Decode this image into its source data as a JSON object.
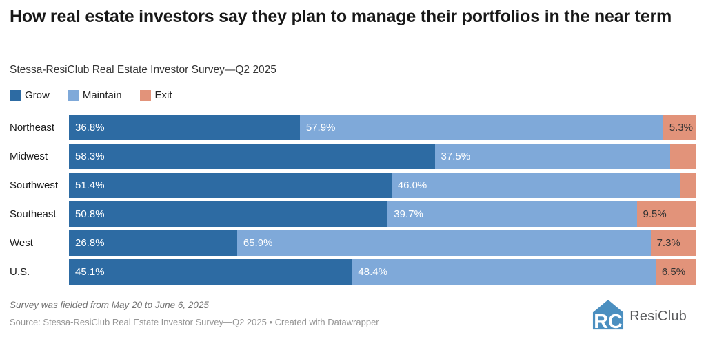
{
  "header": {
    "title": "How real estate investors say they plan to manage their portfolios in the near term",
    "subtitle": "Stessa-ResiClub Real Estate Investor Survey—Q2 2025"
  },
  "legend": {
    "position": "top",
    "items": [
      {
        "label": "Grow",
        "color": "#2d6ba3"
      },
      {
        "label": "Maintain",
        "color": "#7fa9d9"
      },
      {
        "label": "Exit",
        "color": "#e2937a"
      }
    ]
  },
  "chart_data": {
    "type": "bar",
    "stacked": true,
    "orientation": "horizontal",
    "grid": false,
    "xlim": [
      0,
      100
    ],
    "value_unit": "percent",
    "categories": [
      "Northeast",
      "Midwest",
      "Southwest",
      "Southeast",
      "West",
      "U.S."
    ],
    "series": [
      {
        "name": "Grow",
        "color": "#2d6ba3",
        "label_color": "#ffffff",
        "values": [
          36.8,
          58.3,
          51.4,
          50.8,
          26.8,
          45.1
        ],
        "labels": [
          "36.8%",
          "58.3%",
          "51.4%",
          "50.8%",
          "26.8%",
          "45.1%"
        ]
      },
      {
        "name": "Maintain",
        "color": "#7fa9d9",
        "label_color": "#ffffff",
        "values": [
          57.9,
          37.5,
          46.0,
          39.7,
          65.9,
          48.4
        ],
        "labels": [
          "57.9%",
          "37.5%",
          "46.0%",
          "39.7%",
          "65.9%",
          "48.4%"
        ]
      },
      {
        "name": "Exit",
        "color": "#e2937a",
        "label_color": "#333333",
        "values": [
          5.3,
          4.2,
          2.6,
          9.5,
          7.3,
          6.5
        ],
        "labels": [
          "5.3%",
          "",
          "",
          "9.5%",
          "7.3%",
          "6.5%"
        ]
      }
    ]
  },
  "footer": {
    "note": "Survey was fielded from May 20 to June 6, 2025",
    "source": "Source: Stessa-ResiClub Real Estate Investor Survey—Q2 2025 • Created with Datawrapper",
    "logo_text": "ResiClub",
    "logo_color": "#4b8fc0"
  }
}
